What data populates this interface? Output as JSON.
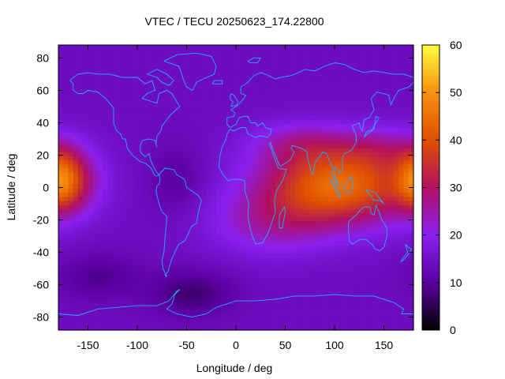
{
  "chart_data": {
    "type": "heatmap",
    "title": "VTEC / TECU 20250623_174.22800",
    "xlabel": "Longitude / deg",
    "ylabel": "Latitude / deg",
    "xlim": [
      -180,
      180
    ],
    "ylim": [
      -88,
      88
    ],
    "x_ticks": [
      -150,
      -100,
      -50,
      0,
      50,
      100,
      150
    ],
    "y_ticks": [
      -80,
      -60,
      -40,
      -20,
      0,
      20,
      40,
      60,
      80
    ],
    "colorbar": {
      "range": [
        0,
        60
      ],
      "ticks": [
        0,
        10,
        20,
        30,
        40,
        50,
        60
      ],
      "colormap": [
        "#000000",
        "#5a00a0",
        "#8a20f0",
        "#b01060",
        "#e05000",
        "#f89010",
        "#ffff40"
      ]
    },
    "grid": false,
    "grid_resolution": {
      "dlon": 5,
      "dlat": 2.5
    },
    "tec_features": [
      {
        "lon": 105,
        "lat": 2,
        "sigma_lon": 55,
        "sigma_lat": 17,
        "amplitude": 30
      },
      {
        "lon": 65,
        "lat": 28,
        "sigma_lon": 35,
        "sigma_lat": 9,
        "amplitude": 8
      },
      {
        "lon": 150,
        "lat": 25,
        "sigma_lon": 30,
        "sigma_lat": 9,
        "amplitude": 6
      },
      {
        "lon": 35,
        "lat": -22,
        "sigma_lon": 45,
        "sigma_lat": 14,
        "amplitude": 9
      },
      {
        "lon": -178,
        "lat": 5,
        "sigma_lon": 14,
        "sigma_lat": 13,
        "amplitude": 19
      },
      {
        "lon": -160,
        "lat": 5,
        "sigma_lon": 18,
        "sigma_lat": 14,
        "amplitude": 9
      },
      {
        "lon": -45,
        "lat": -65,
        "sigma_lon": 30,
        "sigma_lat": 10,
        "amplitude": -7
      },
      {
        "lon": -140,
        "lat": -55,
        "sigma_lon": 30,
        "sigma_lat": 10,
        "amplitude": -5
      },
      {
        "lon": -60,
        "lat": 5,
        "sigma_lon": 20,
        "sigma_lat": 15,
        "amplitude": -4
      }
    ],
    "background_tec": 14
  },
  "coastlines": {
    "north_america": [
      [
        -165,
        68
      ],
      [
        -160,
        70
      ],
      [
        -150,
        71
      ],
      [
        -140,
        70
      ],
      [
        -128,
        70
      ],
      [
        -115,
        68
      ],
      [
        -100,
        68
      ],
      [
        -92,
        64
      ],
      [
        -85,
        66
      ],
      [
        -82,
        60
      ],
      [
        -90,
        58
      ],
      [
        -95,
        55
      ],
      [
        -80,
        52
      ],
      [
        -78,
        58
      ],
      [
        -70,
        60
      ],
      [
        -65,
        58
      ],
      [
        -62,
        55
      ],
      [
        -57,
        50
      ],
      [
        -66,
        45
      ],
      [
        -70,
        42
      ],
      [
        -75,
        38
      ],
      [
        -76,
        35
      ],
      [
        -80,
        32
      ],
      [
        -81,
        27
      ],
      [
        -80,
        25
      ],
      [
        -82,
        29
      ],
      [
        -88,
        30
      ],
      [
        -95,
        29
      ],
      [
        -97,
        26
      ],
      [
        -97,
        22
      ],
      [
        -92,
        19
      ],
      [
        -88,
        21
      ],
      [
        -86,
        16
      ],
      [
        -83,
        12
      ],
      [
        -80,
        9
      ],
      [
        -78,
        8
      ],
      [
        -80,
        7
      ],
      [
        -83,
        8
      ],
      [
        -86,
        12
      ],
      [
        -92,
        15
      ],
      [
        -97,
        16
      ],
      [
        -105,
        20
      ],
      [
        -110,
        24
      ],
      [
        -112,
        30
      ],
      [
        -115,
        30
      ],
      [
        -117,
        33
      ],
      [
        -121,
        35
      ],
      [
        -124,
        40
      ],
      [
        -124,
        46
      ],
      [
        -124,
        49
      ],
      [
        -128,
        52
      ],
      [
        -132,
        55
      ],
      [
        -140,
        59
      ],
      [
        -150,
        60
      ],
      [
        -155,
        58
      ],
      [
        -160,
        58
      ],
      [
        -165,
        60
      ],
      [
        -165,
        64
      ],
      [
        -168,
        66
      ],
      [
        -165,
        68
      ]
    ],
    "greenland": [
      [
        -73,
        78
      ],
      [
        -60,
        82
      ],
      [
        -40,
        83
      ],
      [
        -25,
        81
      ],
      [
        -20,
        75
      ],
      [
        -22,
        70
      ],
      [
        -30,
        68
      ],
      [
        -40,
        65
      ],
      [
        -44,
        60
      ],
      [
        -50,
        62
      ],
      [
        -53,
        66
      ],
      [
        -55,
        70
      ],
      [
        -58,
        75
      ],
      [
        -68,
        77
      ],
      [
        -73,
        78
      ]
    ],
    "south_america": [
      [
        -78,
        8
      ],
      [
        -72,
        12
      ],
      [
        -63,
        11
      ],
      [
        -60,
        8
      ],
      [
        -52,
        5
      ],
      [
        -50,
        0
      ],
      [
        -45,
        -2
      ],
      [
        -38,
        -5
      ],
      [
        -35,
        -8
      ],
      [
        -38,
        -15
      ],
      [
        -40,
        -22
      ],
      [
        -45,
        -24
      ],
      [
        -48,
        -28
      ],
      [
        -52,
        -33
      ],
      [
        -58,
        -35
      ],
      [
        -62,
        -40
      ],
      [
        -65,
        -44
      ],
      [
        -67,
        -48
      ],
      [
        -69,
        -52
      ],
      [
        -72,
        -54
      ],
      [
        -70,
        -55
      ],
      [
        -74,
        -50
      ],
      [
        -75,
        -45
      ],
      [
        -73,
        -40
      ],
      [
        -72,
        -32
      ],
      [
        -71,
        -25
      ],
      [
        -70,
        -18
      ],
      [
        -75,
        -15
      ],
      [
        -78,
        -10
      ],
      [
        -80,
        -5
      ],
      [
        -81,
        -2
      ],
      [
        -80,
        1
      ],
      [
        -78,
        2
      ],
      [
        -77,
        5
      ],
      [
        -78,
        8
      ]
    ],
    "africa_eurasia": [
      [
        -17,
        15
      ],
      [
        -16,
        20
      ],
      [
        -14,
        25
      ],
      [
        -10,
        30
      ],
      [
        -9,
        33
      ],
      [
        -6,
        36
      ],
      [
        -2,
        35
      ],
      [
        5,
        37
      ],
      [
        10,
        37
      ],
      [
        12,
        33
      ],
      [
        20,
        31
      ],
      [
        25,
        32
      ],
      [
        32,
        31
      ],
      [
        35,
        33
      ],
      [
        36,
        36
      ],
      [
        30,
        37
      ],
      [
        27,
        40
      ],
      [
        22,
        38
      ],
      [
        20,
        40
      ],
      [
        15,
        40
      ],
      [
        12,
        44
      ],
      [
        8,
        44
      ],
      [
        3,
        43
      ],
      [
        0,
        39
      ],
      [
        -6,
        37
      ],
      [
        -9,
        39
      ],
      [
        -9,
        43
      ],
      [
        -2,
        44
      ],
      [
        -1,
        46
      ],
      [
        -5,
        48
      ],
      [
        2,
        51
      ],
      [
        5,
        53
      ],
      [
        8,
        55
      ],
      [
        10,
        57
      ],
      [
        5,
        58
      ],
      [
        5,
        62
      ],
      [
        12,
        65
      ],
      [
        18,
        69
      ],
      [
        25,
        71
      ],
      [
        30,
        70
      ],
      [
        40,
        67
      ],
      [
        45,
        68
      ],
      [
        55,
        69
      ],
      [
        60,
        70
      ],
      [
        70,
        73
      ],
      [
        80,
        72
      ],
      [
        90,
        75
      ],
      [
        100,
        77
      ],
      [
        110,
        76
      ],
      [
        120,
        73
      ],
      [
        130,
        71
      ],
      [
        140,
        72
      ],
      [
        150,
        71
      ],
      [
        160,
        70
      ],
      [
        170,
        70
      ],
      [
        180,
        68
      ],
      [
        180,
        65
      ],
      [
        175,
        62
      ],
      [
        165,
        60
      ],
      [
        160,
        55
      ],
      [
        157,
        51
      ],
      [
        155,
        57
      ],
      [
        143,
        59
      ],
      [
        137,
        55
      ],
      [
        140,
        48
      ],
      [
        135,
        43
      ],
      [
        130,
        42
      ],
      [
        128,
        35
      ],
      [
        126,
        37
      ],
      [
        125,
        40
      ],
      [
        121,
        39
      ],
      [
        118,
        38
      ],
      [
        122,
        32
      ],
      [
        122,
        28
      ],
      [
        117,
        23
      ],
      [
        110,
        21
      ],
      [
        108,
        18
      ],
      [
        108,
        11
      ],
      [
        105,
        9
      ],
      [
        103,
        12
      ],
      [
        100,
        13
      ],
      [
        100,
        8
      ],
      [
        102,
        4
      ],
      [
        104,
        1
      ],
      [
        101,
        3
      ],
      [
        98,
        8
      ],
      [
        98,
        12
      ],
      [
        95,
        16
      ],
      [
        92,
        21
      ],
      [
        88,
        22
      ],
      [
        86,
        20
      ],
      [
        80,
        15
      ],
      [
        78,
        8
      ],
      [
        76,
        10
      ],
      [
        73,
        18
      ],
      [
        72,
        22
      ],
      [
        67,
        24
      ],
      [
        62,
        25
      ],
      [
        57,
        26
      ],
      [
        56,
        24
      ],
      [
        59,
        22
      ],
      [
        55,
        17
      ],
      [
        50,
        15
      ],
      [
        45,
        13
      ],
      [
        43,
        15
      ],
      [
        40,
        20
      ],
      [
        37,
        24
      ],
      [
        35,
        28
      ],
      [
        34,
        27
      ],
      [
        38,
        20
      ],
      [
        43,
        12
      ],
      [
        51,
        11
      ],
      [
        48,
        5
      ],
      [
        41,
        -2
      ],
      [
        39,
        -8
      ],
      [
        40,
        -15
      ],
      [
        35,
        -24
      ],
      [
        32,
        -29
      ],
      [
        27,
        -34
      ],
      [
        20,
        -35
      ],
      [
        18,
        -32
      ],
      [
        15,
        -27
      ],
      [
        12,
        -18
      ],
      [
        13,
        -10
      ],
      [
        9,
        -2
      ],
      [
        9,
        4
      ],
      [
        5,
        5
      ],
      [
        0,
        5
      ],
      [
        -5,
        5
      ],
      [
        -8,
        4
      ],
      [
        -13,
        8
      ],
      [
        -17,
        12
      ],
      [
        -17,
        15
      ]
    ],
    "australia": [
      [
        114,
        -22
      ],
      [
        116,
        -20
      ],
      [
        122,
        -17
      ],
      [
        126,
        -14
      ],
      [
        130,
        -12
      ],
      [
        136,
        -12
      ],
      [
        137,
        -16
      ],
      [
        140,
        -17
      ],
      [
        142,
        -11
      ],
      [
        145,
        -15
      ],
      [
        147,
        -19
      ],
      [
        150,
        -22
      ],
      [
        153,
        -25
      ],
      [
        153,
        -30
      ],
      [
        150,
        -37
      ],
      [
        146,
        -39
      ],
      [
        141,
        -38
      ],
      [
        138,
        -35
      ],
      [
        135,
        -34
      ],
      [
        132,
        -32
      ],
      [
        126,
        -32
      ],
      [
        118,
        -35
      ],
      [
        115,
        -33
      ],
      [
        114,
        -26
      ],
      [
        114,
        -22
      ]
    ],
    "antarctica": [
      [
        -180,
        -78
      ],
      [
        -160,
        -79
      ],
      [
        -150,
        -77
      ],
      [
        -140,
        -75
      ],
      [
        -120,
        -74
      ],
      [
        -100,
        -73
      ],
      [
        -80,
        -73
      ],
      [
        -68,
        -70
      ],
      [
        -60,
        -64
      ],
      [
        -57,
        -63
      ],
      [
        -62,
        -66
      ],
      [
        -65,
        -72
      ],
      [
        -70,
        -75
      ],
      [
        -60,
        -78
      ],
      [
        -45,
        -80
      ],
      [
        -30,
        -78
      ],
      [
        -20,
        -74
      ],
      [
        0,
        -70
      ],
      [
        20,
        -70
      ],
      [
        40,
        -69
      ],
      [
        60,
        -67
      ],
      [
        80,
        -67
      ],
      [
        100,
        -66
      ],
      [
        120,
        -67
      ],
      [
        140,
        -67
      ],
      [
        160,
        -71
      ],
      [
        170,
        -75
      ],
      [
        168,
        -78
      ],
      [
        180,
        -78
      ]
    ],
    "uk": [
      [
        -5,
        50
      ],
      [
        1,
        51
      ],
      [
        2,
        53
      ],
      [
        0,
        55
      ],
      [
        -2,
        57
      ],
      [
        -5,
        58
      ],
      [
        -6,
        56
      ],
      [
        -5,
        54
      ],
      [
        -3,
        53
      ],
      [
        -5,
        50
      ]
    ],
    "japan": [
      [
        130,
        31
      ],
      [
        132,
        34
      ],
      [
        135,
        35
      ],
      [
        140,
        36
      ],
      [
        141,
        41
      ],
      [
        142,
        44
      ],
      [
        145,
        43
      ],
      [
        140,
        38
      ],
      [
        138,
        35
      ],
      [
        133,
        33
      ],
      [
        130,
        31
      ]
    ],
    "madagascar": [
      [
        44,
        -25
      ],
      [
        47,
        -25
      ],
      [
        50,
        -15
      ],
      [
        49,
        -12
      ],
      [
        44,
        -17
      ],
      [
        44,
        -25
      ]
    ],
    "borneo": [
      [
        109,
        1
      ],
      [
        111,
        -3
      ],
      [
        116,
        -4
      ],
      [
        119,
        1
      ],
      [
        117,
        7
      ],
      [
        115,
        5
      ],
      [
        109,
        1
      ]
    ],
    "sumatra": [
      [
        95,
        5
      ],
      [
        100,
        0
      ],
      [
        104,
        -5
      ],
      [
        106,
        -6
      ],
      [
        104,
        -2
      ],
      [
        98,
        4
      ],
      [
        95,
        5
      ]
    ],
    "new_guinea": [
      [
        131,
        -1
      ],
      [
        141,
        -3
      ],
      [
        150,
        -10
      ],
      [
        146,
        -8
      ],
      [
        140,
        -8
      ],
      [
        135,
        -4
      ],
      [
        131,
        -1
      ]
    ],
    "new_zealand": [
      [
        172,
        -35
      ],
      [
        175,
        -37
      ],
      [
        178,
        -38
      ],
      [
        175,
        -41
      ],
      [
        171,
        -44
      ],
      [
        167,
        -46
      ],
      [
        170,
        -43
      ],
      [
        174,
        -40
      ],
      [
        172,
        -35
      ]
    ],
    "iceland": [
      [
        -24,
        64
      ],
      [
        -14,
        64
      ],
      [
        -14,
        66
      ],
      [
        -22,
        66
      ],
      [
        -24,
        64
      ]
    ],
    "baffin": [
      [
        -90,
        70
      ],
      [
        -80,
        73
      ],
      [
        -70,
        70
      ],
      [
        -63,
        66
      ],
      [
        -68,
        63
      ],
      [
        -75,
        65
      ],
      [
        -80,
        68
      ],
      [
        -90,
        70
      ]
    ],
    "svalbard": [
      [
        12,
        78
      ],
      [
        18,
        80
      ],
      [
        25,
        80
      ],
      [
        22,
        77
      ],
      [
        15,
        77
      ],
      [
        12,
        78
      ]
    ]
  }
}
